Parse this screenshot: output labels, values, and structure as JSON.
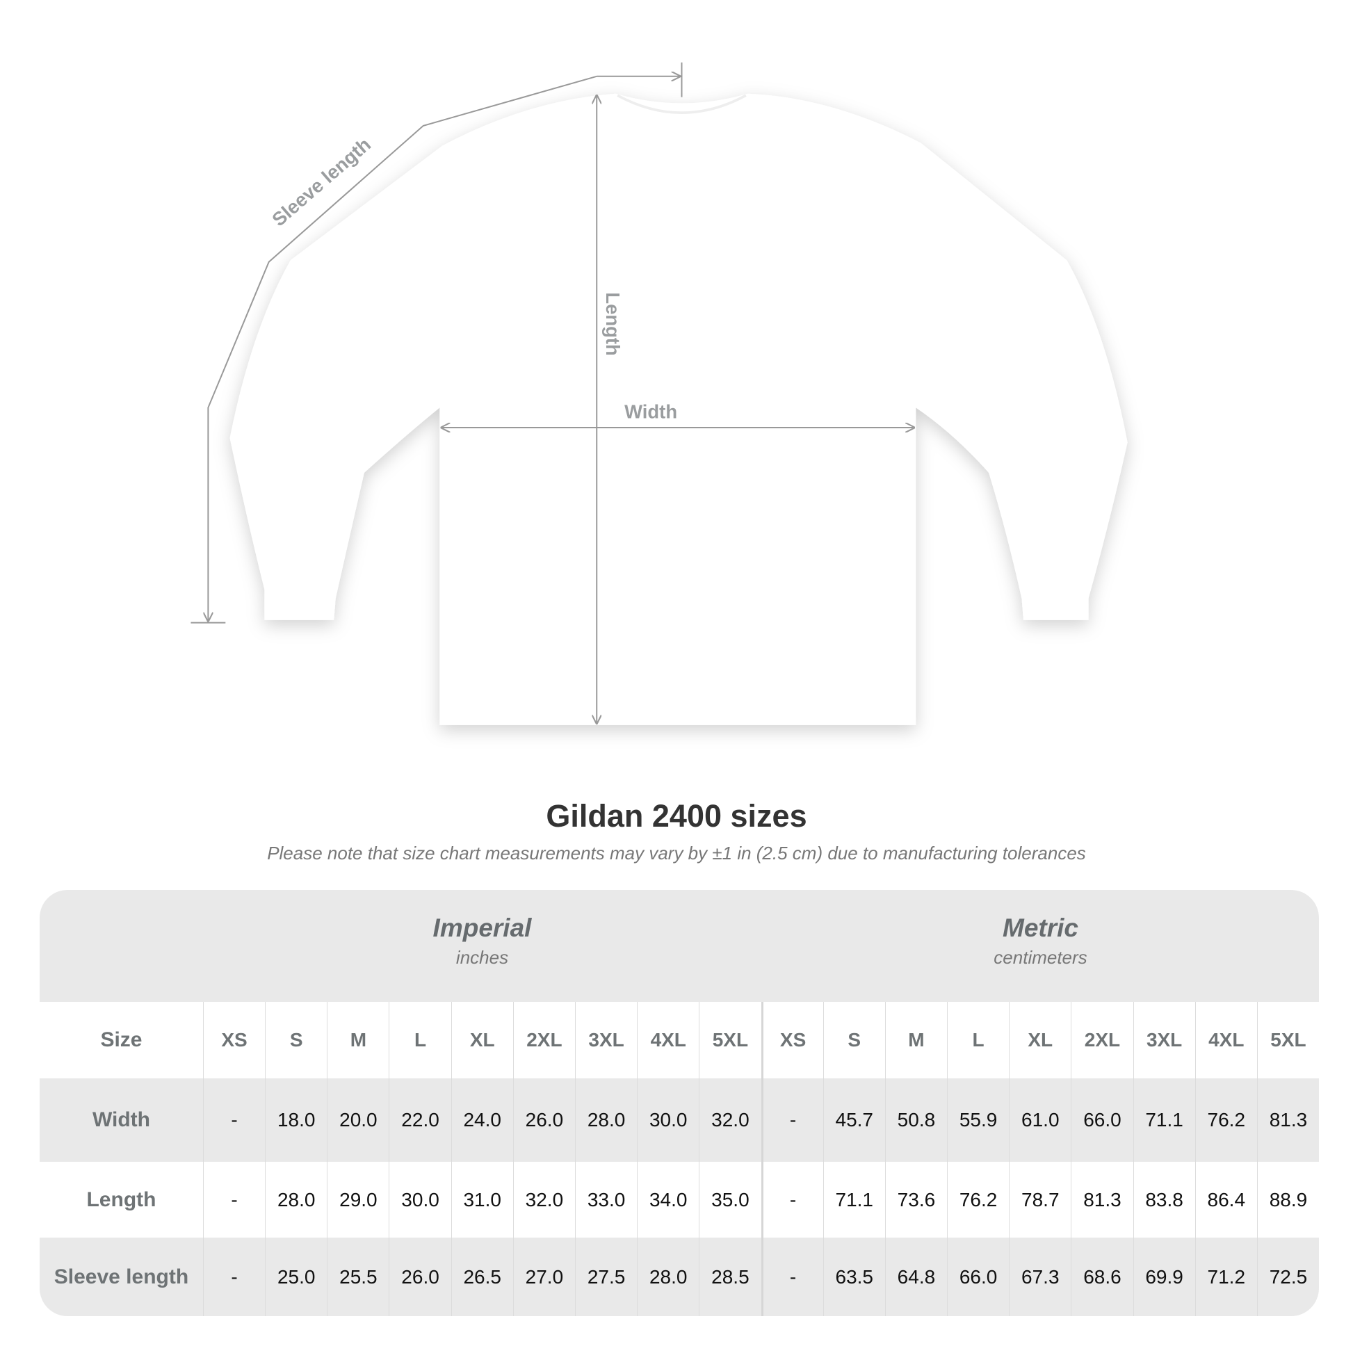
{
  "diagram": {
    "labels": {
      "sleeve_length": "Sleeve length",
      "length": "Length",
      "width": "Width"
    }
  },
  "title": "Gildan 2400 sizes",
  "subtitle": "Please note that size chart measurements may vary by ±1 in (2.5 cm) due to manufacturing tolerances",
  "table": {
    "imperial": {
      "name": "Imperial",
      "unit": "inches"
    },
    "metric": {
      "name": "Metric",
      "unit": "centimeters"
    },
    "size_label": "Size",
    "sizes": [
      "XS",
      "S",
      "M",
      "L",
      "XL",
      "2XL",
      "3XL",
      "4XL",
      "5XL"
    ],
    "rows": [
      {
        "label": "Width",
        "imperial": [
          "-",
          "18.0",
          "20.0",
          "22.0",
          "24.0",
          "26.0",
          "28.0",
          "30.0",
          "32.0"
        ],
        "metric": [
          "-",
          "45.7",
          "50.8",
          "55.9",
          "61.0",
          "66.0",
          "71.1",
          "76.2",
          "81.3"
        ]
      },
      {
        "label": "Length",
        "imperial": [
          "-",
          "28.0",
          "29.0",
          "30.0",
          "31.0",
          "32.0",
          "33.0",
          "34.0",
          "35.0"
        ],
        "metric": [
          "-",
          "71.1",
          "73.6",
          "76.2",
          "78.7",
          "81.3",
          "83.8",
          "86.4",
          "88.9"
        ]
      },
      {
        "label": "Sleeve length",
        "imperial": [
          "-",
          "25.0",
          "25.5",
          "26.0",
          "26.5",
          "27.0",
          "27.5",
          "28.0",
          "28.5"
        ],
        "metric": [
          "-",
          "63.5",
          "64.8",
          "66.0",
          "67.3",
          "68.6",
          "69.9",
          "71.2",
          "72.5"
        ]
      }
    ]
  }
}
